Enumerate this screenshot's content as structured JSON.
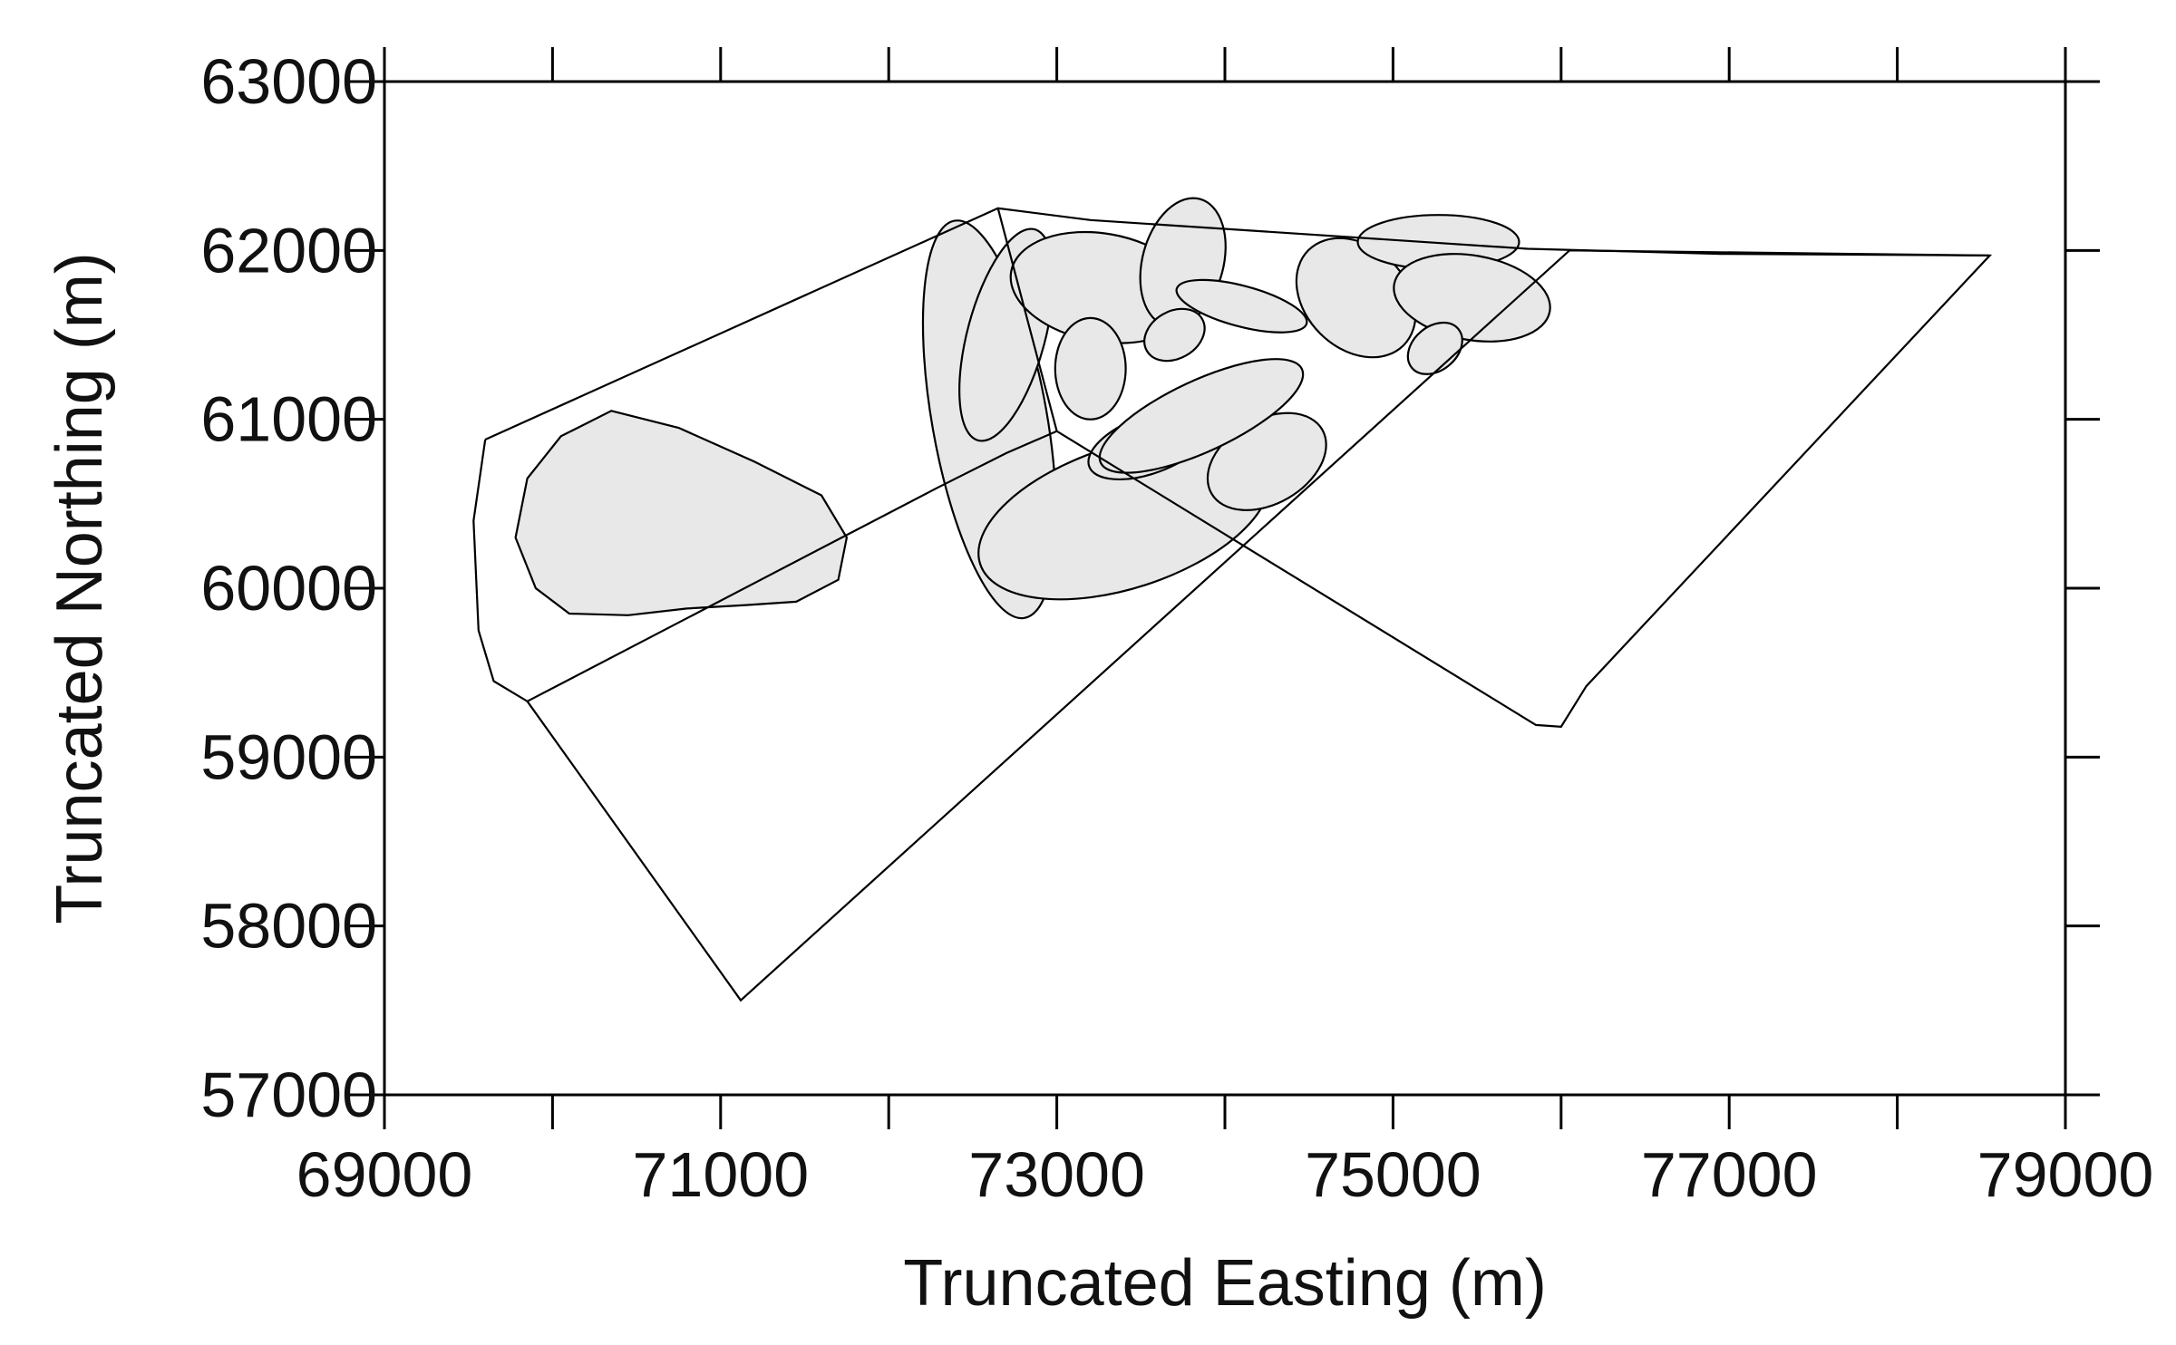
{
  "chart_data": {
    "type": "map-plot",
    "xlabel": "Truncated Easting (m)",
    "ylabel": "Truncated Northing (m)",
    "xlim": [
      69000,
      79000
    ],
    "ylim": [
      57000,
      63000
    ],
    "x_ticks": [
      69000,
      71000,
      73000,
      75000,
      77000,
      79000
    ],
    "y_ticks": [
      57000,
      58000,
      59000,
      60000,
      61000,
      62000,
      63000
    ],
    "x_minor_ticks": [
      70000,
      72000,
      74000,
      76000,
      78000
    ],
    "grid": false,
    "outlines": [
      {
        "points": [
          [
            69600,
            60880
          ],
          [
            72650,
            62250
          ],
          [
            73200,
            62180
          ],
          [
            75800,
            62010
          ],
          [
            76950,
            61980
          ],
          [
            78550,
            61970
          ],
          [
            76150,
            59420
          ],
          [
            76000,
            59180
          ],
          [
            75850,
            59190
          ],
          [
            73000,
            60930
          ],
          [
            72700,
            60800
          ],
          [
            72300,
            60600
          ],
          [
            69850,
            59330
          ],
          [
            69650,
            59450
          ],
          [
            69560,
            59750
          ],
          [
            69530,
            60400
          ],
          [
            69600,
            60880
          ]
        ]
      },
      {
        "points": [
          [
            69850,
            59330
          ],
          [
            71120,
            57560
          ],
          [
            76050,
            62000
          ],
          [
            78550,
            61970
          ]
        ]
      },
      {
        "points": [
          [
            72650,
            62250
          ],
          [
            73000,
            60930
          ]
        ]
      }
    ],
    "shaded_regions": [
      {
        "label_hint": "west-lobe",
        "points": [
          [
            70350,
            61050
          ],
          [
            70750,
            60950
          ],
          [
            71200,
            60750
          ],
          [
            71600,
            60550
          ],
          [
            71750,
            60300
          ],
          [
            71700,
            60050
          ],
          [
            71450,
            59920
          ],
          [
            71150,
            59900
          ],
          [
            70800,
            59880
          ],
          [
            70450,
            59840
          ],
          [
            70100,
            59850
          ],
          [
            69900,
            60000
          ],
          [
            69780,
            60300
          ],
          [
            69850,
            60650
          ],
          [
            70050,
            60900
          ],
          [
            70350,
            61050
          ]
        ]
      },
      {
        "label_hint": "ellipse-a",
        "center": [
          72600,
          61000
        ],
        "rx": 1200,
        "ry": 340,
        "rotation_deg": 100
      },
      {
        "label_hint": "ellipse-b",
        "center": [
          72700,
          61500
        ],
        "rx": 650,
        "ry": 230,
        "rotation_deg": 75
      },
      {
        "label_hint": "ellipse-c",
        "center": [
          73400,
          60420
        ],
        "rx": 900,
        "ry": 420,
        "rotation_deg": 18
      },
      {
        "label_hint": "ellipse-d",
        "center": [
          73270,
          61780
        ],
        "rx": 550,
        "ry": 320,
        "rotation_deg": -10
      },
      {
        "label_hint": "ellipse-e",
        "center": [
          73750,
          61930
        ],
        "rx": 390,
        "ry": 240,
        "rotation_deg": 75
      },
      {
        "label_hint": "ellipse-f",
        "center": [
          73550,
          60850
        ],
        "rx": 380,
        "ry": 170,
        "rotation_deg": 20
      },
      {
        "label_hint": "ellipse-g",
        "center": [
          74250,
          60750
        ],
        "rx": 380,
        "ry": 250,
        "rotation_deg": 30
      },
      {
        "label_hint": "ellipse-h",
        "center": [
          73860,
          61020
        ],
        "rx": 660,
        "ry": 210,
        "rotation_deg": 25
      },
      {
        "label_hint": "ellipse-i",
        "center": [
          73700,
          61500
        ],
        "rx": 190,
        "ry": 140,
        "rotation_deg": 30
      },
      {
        "label_hint": "ellipse-j",
        "center": [
          73200,
          61300
        ],
        "rx": 210,
        "ry": 300,
        "rotation_deg": 0
      },
      {
        "label_hint": "ellipse-k",
        "center": [
          74100,
          61670
        ],
        "rx": 400,
        "ry": 120,
        "rotation_deg": -15
      },
      {
        "label_hint": "ellipse-l",
        "center": [
          74780,
          61720
        ],
        "rx": 400,
        "ry": 300,
        "rotation_deg": -45
      },
      {
        "label_hint": "ellipse-m",
        "center": [
          75270,
          62050
        ],
        "rx": 480,
        "ry": 160,
        "rotation_deg": 0
      },
      {
        "label_hint": "ellipse-n",
        "center": [
          75470,
          61720
        ],
        "rx": 470,
        "ry": 250,
        "rotation_deg": -10
      },
      {
        "label_hint": "ellipse-o",
        "center": [
          75250,
          61420
        ],
        "rx": 180,
        "ry": 130,
        "rotation_deg": 40
      }
    ]
  }
}
